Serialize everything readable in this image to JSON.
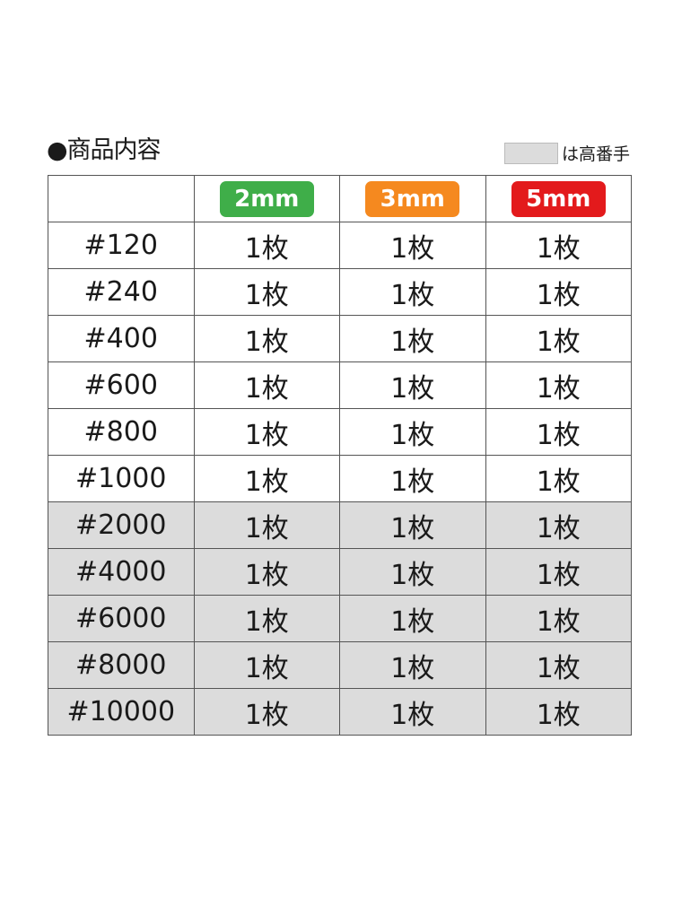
{
  "title": "●商品内容",
  "legend": {
    "label": "は高番手",
    "color": "#dcdcdc"
  },
  "columns": [
    {
      "label": "2mm",
      "color": "#3fae49"
    },
    {
      "label": "3mm",
      "color": "#f5891f"
    },
    {
      "label": "5mm",
      "color": "#e31a1c"
    }
  ],
  "rows": [
    {
      "grit": "#120",
      "values": [
        "1枚",
        "1枚",
        "1枚"
      ],
      "high": false
    },
    {
      "grit": "#240",
      "values": [
        "1枚",
        "1枚",
        "1枚"
      ],
      "high": false
    },
    {
      "grit": "#400",
      "values": [
        "1枚",
        "1枚",
        "1枚"
      ],
      "high": false
    },
    {
      "grit": "#600",
      "values": [
        "1枚",
        "1枚",
        "1枚"
      ],
      "high": false
    },
    {
      "grit": "#800",
      "values": [
        "1枚",
        "1枚",
        "1枚"
      ],
      "high": false
    },
    {
      "grit": "#1000",
      "values": [
        "1枚",
        "1枚",
        "1枚"
      ],
      "high": false
    },
    {
      "grit": "#2000",
      "values": [
        "1枚",
        "1枚",
        "1枚"
      ],
      "high": true
    },
    {
      "grit": "#4000",
      "values": [
        "1枚",
        "1枚",
        "1枚"
      ],
      "high": true
    },
    {
      "grit": "#6000",
      "values": [
        "1枚",
        "1枚",
        "1枚"
      ],
      "high": true
    },
    {
      "grit": "#8000",
      "values": [
        "1枚",
        "1枚",
        "1枚"
      ],
      "high": true
    },
    {
      "grit": "#10000",
      "values": [
        "1枚",
        "1枚",
        "1枚"
      ],
      "high": true
    }
  ]
}
